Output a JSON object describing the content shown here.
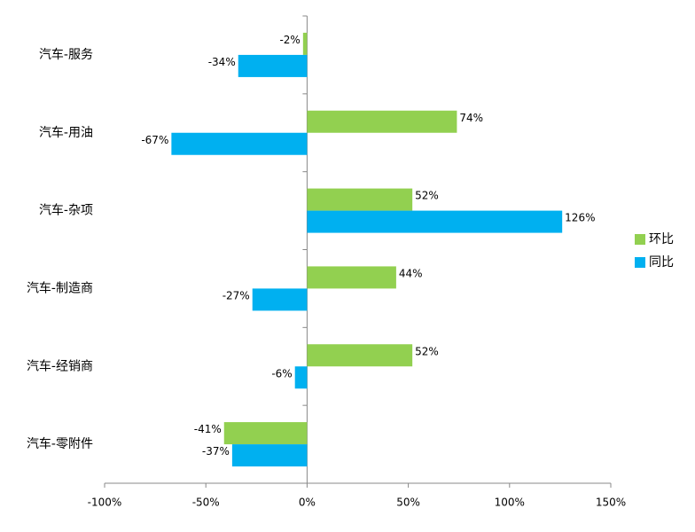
{
  "chart_data": {
    "type": "bar",
    "orientation": "horizontal",
    "categories": [
      "汽车-服务",
      "汽车-用油",
      "汽车-杂项",
      "汽车-制造商",
      "汽车-经销商",
      "汽车-零附件"
    ],
    "series": [
      {
        "name": "环比",
        "color": "#92d050",
        "values": [
          -2,
          74,
          52,
          44,
          52,
          -41
        ],
        "value_labels": [
          "-2%",
          "74%",
          "52%",
          "44%",
          "52%",
          "-41%"
        ]
      },
      {
        "name": "同比",
        "color": "#00b0f0",
        "values": [
          -34,
          -67,
          126,
          -27,
          -6,
          -37
        ],
        "value_labels": [
          "-34%",
          "-67%",
          "126%",
          "-27%",
          "-6%",
          "-37%"
        ]
      }
    ],
    "xlim": [
      -100,
      150
    ],
    "xticks": [
      {
        "value": -100,
        "label": "-100%"
      },
      {
        "value": -50,
        "label": "-50%"
      },
      {
        "value": 0,
        "label": "0%"
      },
      {
        "value": 50,
        "label": "50%"
      },
      {
        "value": 100,
        "label": "100%"
      },
      {
        "value": 150,
        "label": "150%"
      }
    ],
    "legend": "right"
  }
}
